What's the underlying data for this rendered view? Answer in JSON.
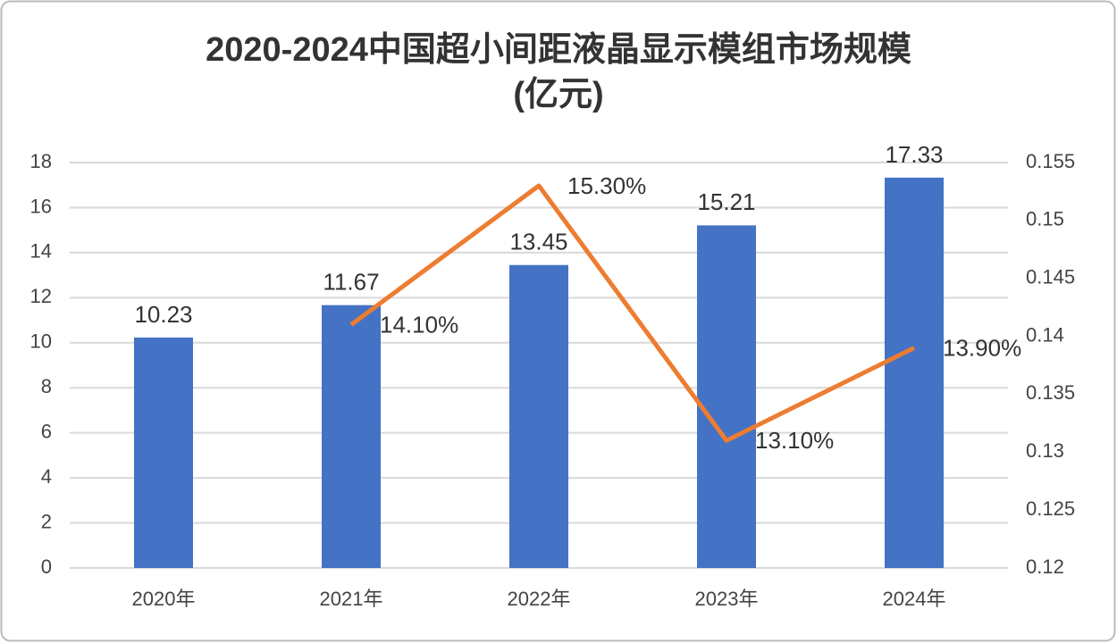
{
  "chart_data": {
    "type": "bar",
    "title": [
      "2020-2024中国超小间距液晶显示模组市场规模",
      "(亿元)"
    ],
    "categories": [
      "2020年",
      "2021年",
      "2022年",
      "2023年",
      "2024年"
    ],
    "series": [
      {
        "type": "bar",
        "color": "#4472c4",
        "values": [
          10.23,
          11.67,
          13.45,
          15.21,
          17.33
        ]
      },
      {
        "type": "line",
        "axis": "y2",
        "color": "#ed7d31",
        "values": [
          null,
          0.141,
          0.153,
          0.131,
          0.139
        ],
        "value_labels": [
          null,
          "14.10%",
          "15.30%",
          "13.10%",
          "13.90%"
        ]
      }
    ],
    "ylim": [
      0,
      18
    ],
    "yticks": [
      0,
      2,
      4,
      6,
      8,
      10,
      12,
      14,
      16,
      18
    ],
    "y2lim": [
      0.12,
      0.155
    ],
    "y2ticks": [
      0.12,
      0.125,
      0.13,
      0.135,
      0.14,
      0.145,
      0.15,
      0.155
    ],
    "grid": true
  }
}
